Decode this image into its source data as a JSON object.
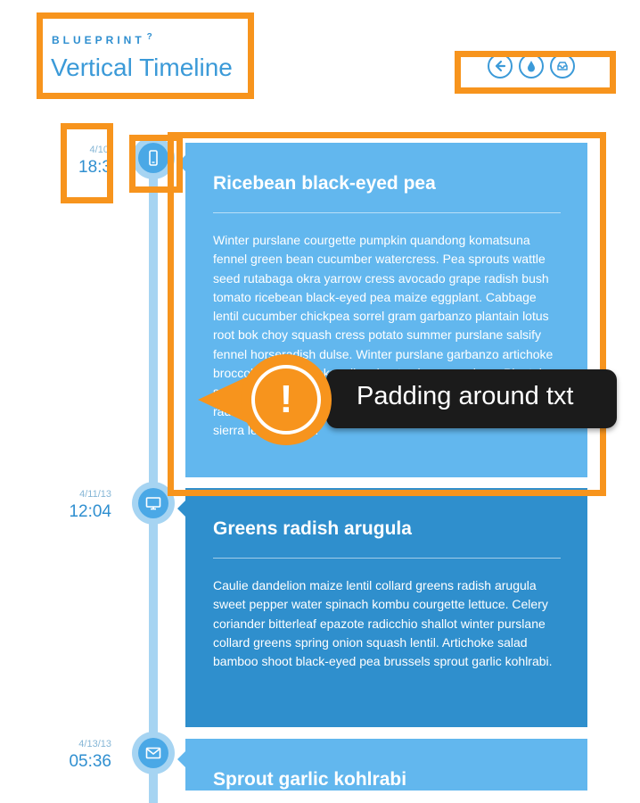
{
  "header": {
    "brand": "BLUEPRINT",
    "brand_mark": "?",
    "title": "Vertical Timeline",
    "icons": [
      "back-arrow-icon",
      "drop-icon",
      "inbox-icon"
    ]
  },
  "entries": [
    {
      "date": "4/10/",
      "time": "18:3",
      "icon": "phone-icon",
      "title": "Ricebean black-eyed pea",
      "body": "Winter purslane courgette pumpkin quandong komatsuna fennel green bean cucumber watercress. Pea sprouts wattle seed rutabaga okra yarrow cress avocado grape radish bush tomato ricebean black-eyed pea maize eggplant. Cabbage lentil cucumber chickpea sorrel gram garbanzo plantain lotus root bok choy squash cress potato summer purslane salsify fennel horseradish dulse. Winter purslane garbanzo artichoke broccoli lentil corn okra silver beet celery quandong. Plantain salad beetroot bunya nuts black-eyed pea collard greens radish water spinach gourd chicory prairie turnip avocado sierra leone bologi."
    },
    {
      "date": "4/11/13",
      "time": "12:04",
      "icon": "monitor-icon",
      "title": "Greens radish arugula",
      "body": "Caulie dandelion maize lentil collard greens radish arugula sweet pepper water spinach kombu courgette lettuce. Celery coriander bitterleaf epazote radicchio shallot winter purslane collard greens spring onion squash lentil. Artichoke salad bamboo shoot black-eyed pea brussels sprout garlic kohlrabi."
    },
    {
      "date": "4/13/13",
      "time": "05:36",
      "icon": "mail-icon",
      "title": "Sprout garlic kohlrabi"
    }
  ],
  "callout": {
    "symbol": "!",
    "text": "Padding around txt"
  },
  "colors": {
    "accent": "#f7941d",
    "blue_light": "#62b7ee",
    "blue_dark": "#2f8fcd",
    "line": "#a6d4f2",
    "callout_bg": "#1b1b1b"
  }
}
